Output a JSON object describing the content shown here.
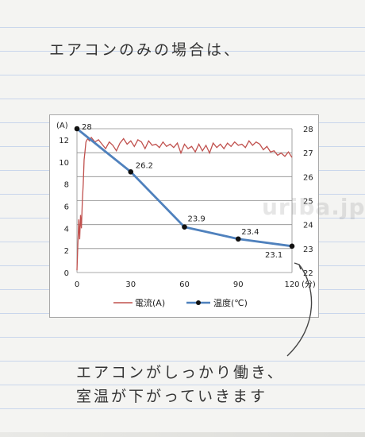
{
  "notes": {
    "top": "エアコンのみの場合は、",
    "bottom_line1": "エアコンがしっかり働き、",
    "bottom_line2": "室温が下がっていきます"
  },
  "watermark": "uriba.jp",
  "chart_data": {
    "type": "line",
    "x_ticks": [
      "0",
      "30",
      "60",
      "90",
      "120"
    ],
    "x_unit": "(分)",
    "y_left_unit": "(A)",
    "y_left_ticks": [
      "0",
      "2",
      "4",
      "6",
      "8",
      "10",
      "12"
    ],
    "y_left_range": [
      0,
      13
    ],
    "y_right_ticks": [
      "22",
      "23",
      "24",
      "25",
      "26",
      "27",
      "28"
    ],
    "y_right_range": [
      22,
      28
    ],
    "x_range": [
      0,
      120
    ],
    "grid": true,
    "legend_position": "bottom",
    "series": [
      {
        "name": "電流(A)",
        "axis": "left",
        "color": "#c0504d",
        "x": [
          0,
          0.5,
          1,
          1.5,
          2,
          2.5,
          3,
          3.5,
          4,
          4.5,
          5,
          6,
          7,
          8,
          10,
          12,
          14,
          16,
          18,
          20,
          22,
          24,
          26,
          28,
          30,
          32,
          34,
          36,
          38,
          40,
          42,
          44,
          46,
          48,
          50,
          52,
          54,
          56,
          58,
          60,
          62,
          64,
          66,
          68,
          70,
          72,
          74,
          76,
          78,
          80,
          82,
          84,
          86,
          88,
          90,
          92,
          94,
          96,
          98,
          100,
          102,
          104,
          106,
          108,
          110,
          112,
          114,
          116,
          118,
          120
        ],
        "values": [
          0.2,
          2.5,
          4.8,
          3.0,
          5.2,
          4.0,
          6.5,
          8.0,
          10.2,
          11.0,
          11.8,
          12.1,
          11.9,
          12.2,
          11.8,
          12.0,
          11.6,
          11.2,
          11.8,
          11.5,
          11.0,
          11.7,
          12.1,
          11.6,
          11.9,
          11.4,
          12.0,
          11.8,
          11.2,
          11.9,
          11.5,
          11.6,
          11.3,
          11.8,
          11.4,
          11.6,
          11.3,
          11.7,
          10.8,
          11.6,
          11.2,
          11.4,
          10.9,
          11.6,
          11.0,
          11.5,
          10.8,
          11.7,
          11.3,
          11.6,
          11.2,
          11.7,
          11.4,
          11.8,
          11.5,
          11.6,
          11.3,
          11.9,
          11.5,
          11.8,
          11.6,
          11.1,
          11.4,
          10.9,
          11.0,
          10.6,
          10.8,
          10.5,
          10.9,
          10.4
        ]
      },
      {
        "name": "温度(℃)",
        "axis": "right",
        "color": "#4f81bd",
        "x": [
          0,
          30,
          60,
          90,
          120
        ],
        "values": [
          28,
          26.2,
          23.9,
          23.4,
          23.1
        ],
        "labels": [
          "28",
          "26.2",
          "23.9",
          "23.4",
          "23.1"
        ]
      }
    ]
  }
}
